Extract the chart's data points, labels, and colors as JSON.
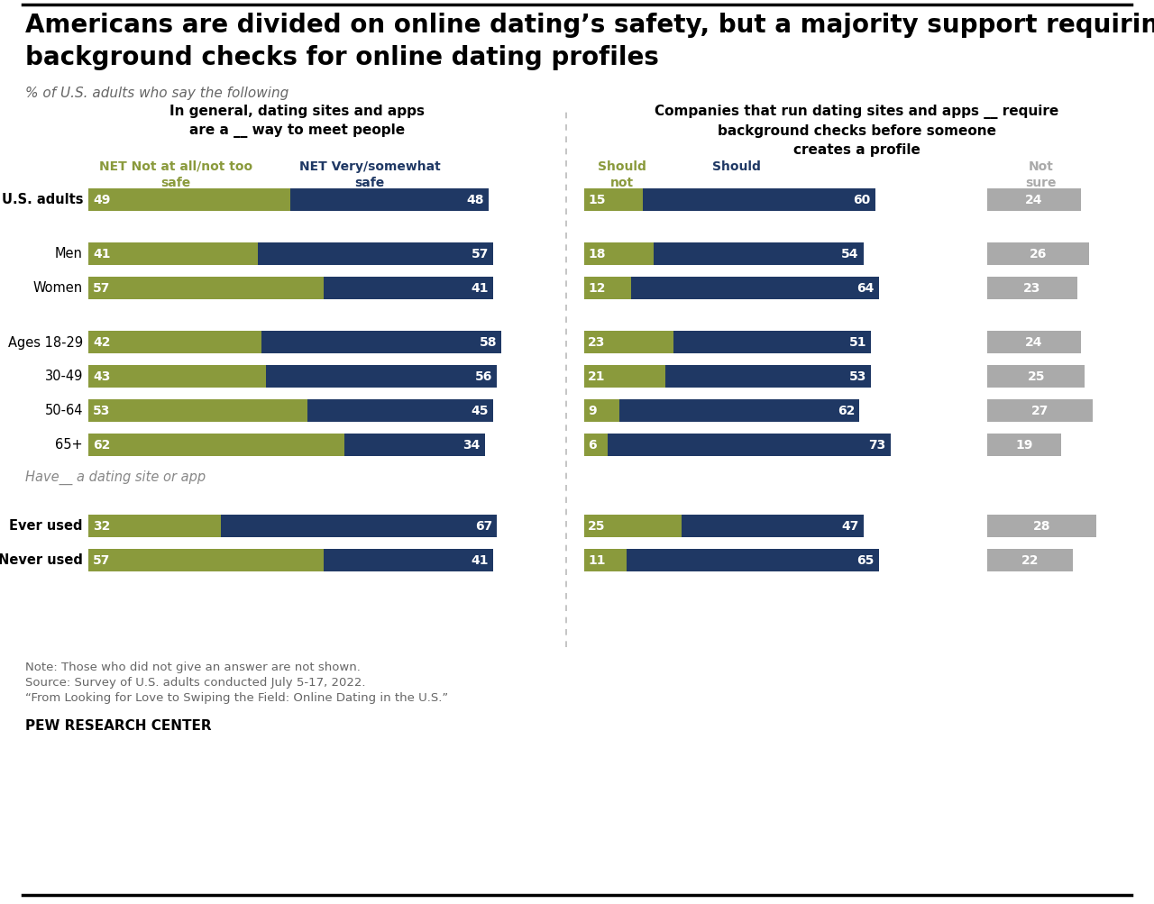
{
  "title": "Americans are divided on online dating’s safety, but a majority support requiring\nbackground checks for online dating profiles",
  "subtitle": "% of U.S. adults who say the following",
  "left_panel_title": "In general, dating sites and apps\nare a __ way to meet people",
  "right_panel_title": "Companies that run dating sites and apps __ require\nbackground checks before someone\ncreates a profile",
  "categories": [
    "U.S. adults",
    "",
    "Men",
    "Women",
    "",
    "Ages 18-29",
    "30-49",
    "50-64",
    "65+",
    "",
    "Ever used",
    "Never used"
  ],
  "left_green": [
    49,
    null,
    41,
    57,
    null,
    42,
    43,
    53,
    62,
    null,
    32,
    57
  ],
  "left_blue": [
    48,
    null,
    57,
    41,
    null,
    58,
    56,
    45,
    34,
    null,
    67,
    41
  ],
  "right_green": [
    15,
    null,
    18,
    12,
    null,
    23,
    21,
    9,
    6,
    null,
    25,
    11
  ],
  "right_blue": [
    60,
    null,
    54,
    64,
    null,
    51,
    53,
    62,
    73,
    null,
    47,
    65
  ],
  "right_gray": [
    24,
    null,
    26,
    23,
    null,
    24,
    25,
    27,
    19,
    null,
    28,
    22
  ],
  "bold_rows": [
    0,
    10,
    11
  ],
  "color_green": "#8a9a3c",
  "color_blue": "#1f3864",
  "color_gray": "#aaaaaa",
  "note1": "Note: Those who did not give an answer are not shown.",
  "note2": "Source: Survey of U.S. adults conducted July 5-17, 2022.",
  "note3": "“From Looking for Love to Swiping the Field: Online Dating in the U.S.”",
  "footer": "PEW RESEARCH CENTER",
  "section_label": "Have__ a dating site or app"
}
